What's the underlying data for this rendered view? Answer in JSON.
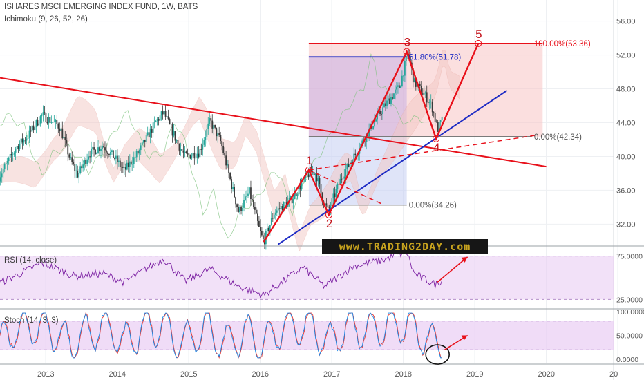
{
  "header": {
    "title": "ISHARES MSCI EMERGING INDEX FUND, 1W, BATS",
    "indicator": "Ichimoku (9, 26, 52, 26)"
  },
  "panes": {
    "rsi_label": "RSI (14, close)",
    "stoch_label": "Stoch (14, 3, 3)"
  },
  "watermark": "www.TRADING2DAY.com",
  "colors": {
    "up": "#26a69a",
    "down": "#3a3a3a",
    "trend": "#e8101a",
    "support": "#1d2bc4",
    "rsi": "#7b1fa2",
    "stoch_k": "#1e88e5",
    "stoch_d": "#e53935",
    "pane_fill": "#e9cdf3"
  },
  "chart_data": [
    {
      "type": "candlestick",
      "series_name": "ISHARES MSCI EMERGING INDEX FUND",
      "timeframe": "1W",
      "x_ticks": [
        "2013",
        "2014",
        "2015",
        "2016",
        "2017",
        "2018",
        "2019",
        "2020",
        "20"
      ],
      "y_ticks": [
        "56.00",
        "52.00",
        "48.00",
        "44.00",
        "40.00",
        "36.00",
        "32.00"
      ],
      "ylim": [
        29.5,
        58.5
      ],
      "price_path": [
        {
          "x": 2012.35,
          "y": 37.6
        },
        {
          "x": 2012.6,
          "y": 41.2
        },
        {
          "x": 2012.75,
          "y": 42.4
        },
        {
          "x": 2012.95,
          "y": 44.9
        },
        {
          "x": 2013.2,
          "y": 43.5
        },
        {
          "x": 2013.35,
          "y": 39.5
        },
        {
          "x": 2013.45,
          "y": 37.8
        },
        {
          "x": 2013.6,
          "y": 40.3
        },
        {
          "x": 2013.8,
          "y": 41.3
        },
        {
          "x": 2013.95,
          "y": 40.0
        },
        {
          "x": 2014.1,
          "y": 38.3
        },
        {
          "x": 2014.3,
          "y": 40.5
        },
        {
          "x": 2014.55,
          "y": 44.2
        },
        {
          "x": 2014.65,
          "y": 45.2
        },
        {
          "x": 2014.85,
          "y": 41.5
        },
        {
          "x": 2014.95,
          "y": 40.0
        },
        {
          "x": 2015.15,
          "y": 40.5
        },
        {
          "x": 2015.3,
          "y": 44.2
        },
        {
          "x": 2015.45,
          "y": 41.7
        },
        {
          "x": 2015.6,
          "y": 36.6
        },
        {
          "x": 2015.7,
          "y": 33.4
        },
        {
          "x": 2015.85,
          "y": 35.8
        },
        {
          "x": 2016.0,
          "y": 31.0
        },
        {
          "x": 2016.05,
          "y": 29.9
        },
        {
          "x": 2016.2,
          "y": 33.4
        },
        {
          "x": 2016.45,
          "y": 35.0
        },
        {
          "x": 2016.6,
          "y": 37.0
        },
        {
          "x": 2016.7,
          "y": 38.2
        },
        {
          "x": 2016.78,
          "y": 38.0
        },
        {
          "x": 2016.88,
          "y": 34.8
        },
        {
          "x": 2016.95,
          "y": 33.5
        },
        {
          "x": 2017.15,
          "y": 37.8
        },
        {
          "x": 2017.35,
          "y": 40.5
        },
        {
          "x": 2017.55,
          "y": 43.5
        },
        {
          "x": 2017.75,
          "y": 46.1
        },
        {
          "x": 2017.95,
          "y": 48.3
        },
        {
          "x": 2018.07,
          "y": 52.3
        },
        {
          "x": 2018.15,
          "y": 48.8
        },
        {
          "x": 2018.3,
          "y": 47.3
        },
        {
          "x": 2018.4,
          "y": 46.0
        },
        {
          "x": 2018.48,
          "y": 43.2
        },
        {
          "x": 2018.55,
          "y": 44.4
        }
      ],
      "fibonacci": [
        {
          "label": "100.00%(53.36)",
          "price": 53.36
        },
        {
          "label": "61.80%(51.78)",
          "price": 51.78
        },
        {
          "label": "0.00%(42.34)",
          "price": 42.34
        },
        {
          "label": "0.00%(34.26)",
          "price": 34.26
        }
      ],
      "wave_labels": [
        {
          "label": "1",
          "x": 2016.68,
          "y": 38.4
        },
        {
          "label": "2",
          "x": 2016.96,
          "y": 33.1
        },
        {
          "label": "3",
          "x": 2018.05,
          "y": 52.4
        },
        {
          "label": "4",
          "x": 2018.46,
          "y": 42.1
        },
        {
          "label": "5",
          "x": 2019.05,
          "y": 53.36
        }
      ]
    },
    {
      "type": "line",
      "series_name": "RSI (14, close)",
      "y_ticks": [
        "75.0000",
        "25.0000"
      ],
      "ylim": [
        15,
        85
      ],
      "bands": [
        75,
        25
      ],
      "x": [
        2012.35,
        2012.6,
        2012.95,
        2013.4,
        2013.8,
        2014.1,
        2014.65,
        2014.95,
        2015.3,
        2015.7,
        2016.05,
        2016.6,
        2016.9,
        2017.3,
        2017.7,
        2018.05,
        2018.15,
        2018.45,
        2018.55
      ],
      "values": [
        44,
        53,
        67,
        52,
        55,
        45,
        72,
        46,
        60,
        40,
        30,
        62,
        40,
        63,
        70,
        80,
        55,
        42,
        48
      ]
    },
    {
      "type": "line",
      "series_name": "Stoch (14, 3, 3)",
      "y_ticks": [
        "100.0000",
        "50.0000",
        "0.0000"
      ],
      "ylim": [
        0,
        100
      ],
      "bands": [
        80,
        20
      ],
      "x": [
        2012.35,
        2012.55,
        2012.8,
        2013.0,
        2013.35,
        2013.6,
        2013.9,
        2014.1,
        2014.4,
        2014.65,
        2014.9,
        2015.25,
        2015.5,
        2015.8,
        2016.0,
        2016.3,
        2016.7,
        2016.95,
        2017.25,
        2017.5,
        2017.8,
        2018.05,
        2018.3,
        2018.45,
        2018.55
      ],
      "values": [
        20,
        70,
        88,
        85,
        18,
        65,
        80,
        15,
        82,
        88,
        20,
        85,
        15,
        60,
        12,
        80,
        92,
        15,
        90,
        70,
        92,
        95,
        40,
        8,
        30
      ]
    }
  ]
}
